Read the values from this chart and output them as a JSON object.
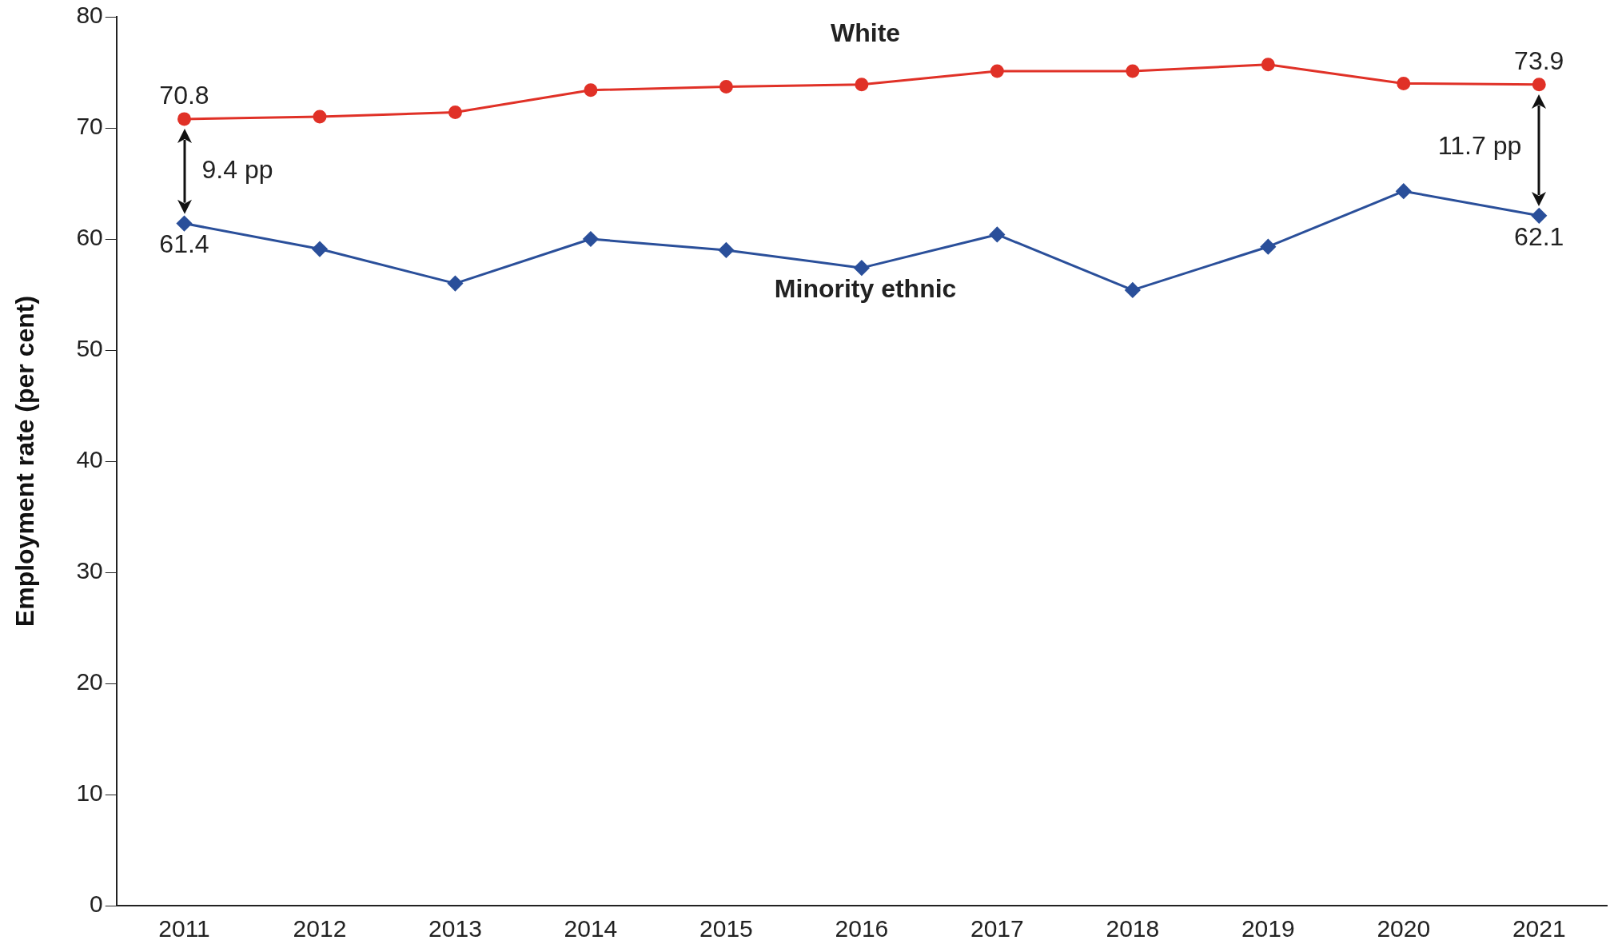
{
  "chart_data": {
    "type": "line",
    "ylabel": "Employment rate (per cent)",
    "categories": [
      "2011",
      "2012",
      "2013",
      "2014",
      "2015",
      "2016",
      "2017",
      "2018",
      "2019",
      "2020",
      "2021"
    ],
    "series": [
      {
        "name": "White",
        "color": "#e03127",
        "marker": "circle",
        "values": [
          70.8,
          71.0,
          71.4,
          73.4,
          73.7,
          73.9,
          75.1,
          75.1,
          75.7,
          74.0,
          73.9
        ],
        "value_labels": [
          "70.8",
          null,
          null,
          null,
          null,
          null,
          null,
          null,
          null,
          null,
          "73.9"
        ]
      },
      {
        "name": "Minority ethnic",
        "color": "#2a4f9a",
        "marker": "diamond",
        "values": [
          61.4,
          59.1,
          56.0,
          60.0,
          59.0,
          57.4,
          60.4,
          55.4,
          59.3,
          64.3,
          62.1
        ],
        "value_labels": [
          "61.4",
          null,
          null,
          null,
          null,
          null,
          null,
          null,
          null,
          null,
          "62.1"
        ]
      }
    ],
    "annotations": [
      "9.4 pp",
      "11.7 pp"
    ],
    "ylim": [
      0,
      80
    ],
    "yticks": [
      0,
      10,
      20,
      30,
      40,
      50,
      60,
      70,
      80
    ],
    "grid": false,
    "legend": false,
    "line_style": "solid"
  }
}
